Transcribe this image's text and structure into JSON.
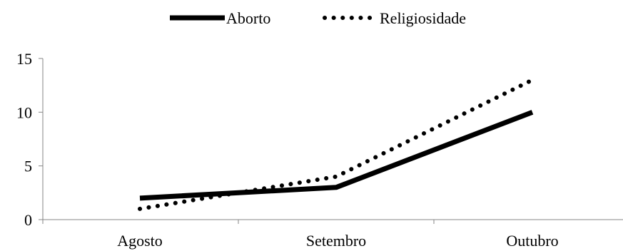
{
  "chart_data": {
    "type": "line",
    "categories": [
      "Agosto",
      "Setembro",
      "Outubro"
    ],
    "series": [
      {
        "name": "Aborto",
        "values": [
          2,
          3,
          10
        ],
        "color": "#000000",
        "style": "solid"
      },
      {
        "name": "Religiosidade",
        "values": [
          1,
          4,
          13
        ],
        "color": "#000000",
        "style": "dotted"
      }
    ],
    "title": "",
    "xlabel": "",
    "ylabel": "",
    "ylim": [
      0,
      15
    ],
    "yticks": [
      0,
      5,
      10,
      15
    ],
    "grid": false,
    "legend_position": "top-center"
  }
}
